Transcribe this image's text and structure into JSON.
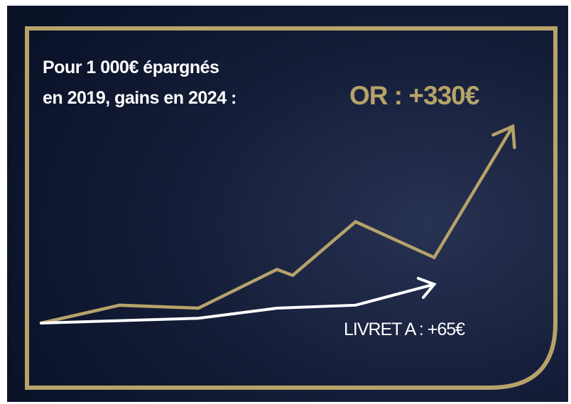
{
  "colors": {
    "background": "#101a33",
    "gold": "#b6a36a",
    "white": "#ffffff"
  },
  "chart_data": {
    "type": "line",
    "title": {
      "line1": "Pour 1 000€ épargnés",
      "line2": "en 2019, gains en 2024 :"
    },
    "xlabel": "",
    "ylabel": "",
    "grid": false,
    "legend": "none",
    "series": [
      {
        "name": "OR : +330€",
        "color": "#b6a36a",
        "label": "OR : +330€",
        "x": [
          0,
          1,
          2,
          3,
          3.2,
          4,
          5,
          6
        ],
        "values": [
          1000,
          1030,
          1025,
          1090,
          1080,
          1170,
          1110,
          1330
        ]
      },
      {
        "name": "LIVRET A : +65€",
        "color": "#ffffff",
        "label": "LIVRET A : +65€",
        "x": [
          0,
          2,
          3,
          4,
          5
        ],
        "values": [
          1000,
          1008,
          1025,
          1030,
          1065
        ]
      }
    ],
    "xlim": [
      0,
      6
    ],
    "ylim": [
      1000,
      1330
    ]
  }
}
